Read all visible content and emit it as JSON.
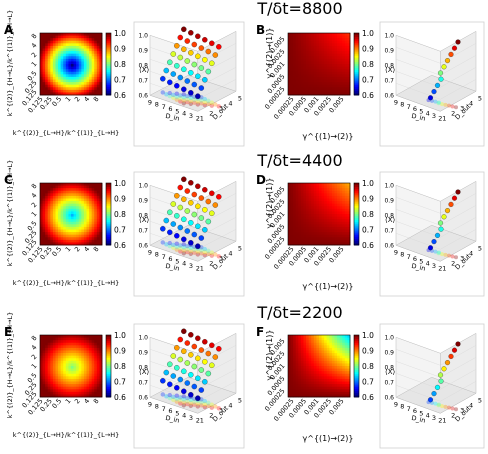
{
  "figure": {
    "rows": [
      {
        "title": "T/δt=8800",
        "left_letter": "A",
        "right_letter": "B",
        "left_colorbar_ticks": [
          "1.0",
          "0.9",
          "0.8",
          "0.7",
          "0.6"
        ],
        "right_colorbar_ticks": [
          "1.0",
          "0.9",
          "0.8",
          "0.7",
          "0.6"
        ]
      },
      {
        "title": "T/δt=4400",
        "left_letter": "C",
        "right_letter": "D",
        "left_colorbar_ticks": [
          "1.0",
          "0.9",
          "0.8",
          "0.7",
          "0.6"
        ],
        "right_colorbar_ticks": [
          "1.0",
          "0.9",
          "0.8",
          "0.7",
          "0.6"
        ]
      },
      {
        "title": "T/δt=2200",
        "left_letter": "E",
        "right_letter": "F",
        "left_colorbar_ticks": [
          "1.0",
          "0.9",
          "0.8",
          "0.7",
          "0.6"
        ],
        "right_colorbar_ticks": [
          "1.0",
          "0.9",
          "0.8",
          "0.7",
          "0.6"
        ]
      }
    ],
    "left_heatmap": {
      "xlabel": "k^{(2)}_{L→H}/k^{(1)}_{L→H}",
      "ylabel": "k^{(2)}_{H→L}/k^{(1)}_{H→L}",
      "x_ticks": [
        "0.125",
        "0.25",
        "0.5",
        "1",
        "2",
        "4",
        "8"
      ],
      "y_ticks": [
        "0.125",
        "0.25",
        "0.5",
        "1",
        "2",
        "4",
        "8"
      ]
    },
    "right_heatmap": {
      "xlabel": "γ^{(1)→(2)}",
      "ylabel": "γ^{(2)→(1)}",
      "x_ticks": [
        "0.00025",
        "0.0005",
        "0.001",
        "0.0025",
        "0.005"
      ],
      "y_ticks": [
        "0.00025",
        "0.0005",
        "0.001",
        "0.0025",
        "0.005"
      ]
    },
    "scatter3d": {
      "zlabel": "⟨X⟩",
      "z_ticks": [
        "1.0",
        "0.9",
        "0.8",
        "0.7",
        "0.6"
      ],
      "left_axis_label": "D_in",
      "right_axis_label": "D_out",
      "left_axis_ticks": [
        "9",
        "8",
        "7",
        "6",
        "5",
        "4",
        "3",
        "2"
      ],
      "right_axis_ticks": [
        "1",
        "2",
        "3",
        "4",
        "5"
      ]
    },
    "colors": {
      "high": "#b40000",
      "low": "#0000a0"
    }
  },
  "chart_data": [
    {
      "type": "heatmap",
      "panel": "A",
      "x": [
        0.125,
        0.25,
        0.5,
        1,
        2,
        4,
        8
      ],
      "y": [
        0.125,
        0.25,
        0.5,
        1,
        2,
        4,
        8
      ],
      "zlim": [
        0.6,
        1.0
      ],
      "center_min": 0.6
    },
    {
      "type": "scatter",
      "panel": "A-3d",
      "zlim": [
        0.6,
        1.0
      ],
      "points_per_series": 7
    },
    {
      "type": "heatmap",
      "panel": "B",
      "x": [
        0.00025,
        0.0005,
        0.001,
        0.0025,
        0.005
      ],
      "y": [
        0.00025,
        0.0005,
        0.001,
        0.0025,
        0.005
      ],
      "zlim": [
        0.6,
        1.0
      ],
      "min_value": 0.93
    },
    {
      "type": "scatter",
      "panel": "B-3d",
      "zlim": [
        0.6,
        1.0
      ]
    },
    {
      "type": "heatmap",
      "panel": "C",
      "zlim": [
        0.6,
        1.0
      ],
      "center_min": 0.72
    },
    {
      "type": "scatter",
      "panel": "C-3d",
      "zlim": [
        0.6,
        1.0
      ]
    },
    {
      "type": "heatmap",
      "panel": "D",
      "zlim": [
        0.6,
        1.0
      ],
      "min_value": 0.88
    },
    {
      "type": "scatter",
      "panel": "D-3d",
      "zlim": [
        0.6,
        1.0
      ]
    },
    {
      "type": "heatmap",
      "panel": "E",
      "zlim": [
        0.6,
        1.0
      ],
      "center_min": 0.8
    },
    {
      "type": "scatter",
      "panel": "E-3d",
      "zlim": [
        0.6,
        1.0
      ]
    },
    {
      "type": "heatmap",
      "panel": "F",
      "zlim": [
        0.6,
        1.0
      ],
      "min_value": 0.72
    },
    {
      "type": "scatter",
      "panel": "F-3d",
      "zlim": [
        0.6,
        1.0
      ]
    }
  ]
}
